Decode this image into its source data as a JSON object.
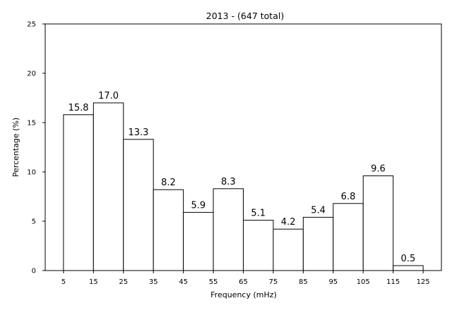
{
  "chart_data": {
    "type": "bar",
    "title": "2013 - (647 total)",
    "xlabel": "Frequency (mHz)",
    "ylabel": "Percentage (%)",
    "bin_edges": [
      5,
      15,
      25,
      35,
      45,
      55,
      65,
      75,
      85,
      95,
      105,
      115,
      125
    ],
    "values": [
      15.8,
      17.0,
      13.3,
      8.2,
      5.9,
      8.3,
      5.1,
      4.2,
      5.4,
      6.8,
      9.6,
      0.5
    ],
    "value_labels": [
      "15.8",
      "17.0",
      "13.3",
      "8.2",
      "5.9",
      "8.3",
      "5.1",
      "4.2",
      "5.4",
      "6.8",
      "9.6",
      "0.5"
    ],
    "xticks": [
      "5",
      "15",
      "25",
      "35",
      "45",
      "55",
      "65",
      "75",
      "85",
      "95",
      "105",
      "115",
      "125"
    ],
    "xtick_values": [
      5,
      15,
      25,
      35,
      45,
      55,
      65,
      75,
      85,
      95,
      105,
      115,
      125
    ],
    "yticks": [
      "0",
      "5",
      "10",
      "15",
      "20",
      "25"
    ],
    "ytick_values": [
      0,
      5,
      10,
      15,
      20,
      25
    ],
    "xlim": [
      -1.1,
      131.1
    ],
    "ylim": [
      0,
      25
    ],
    "grid": false,
    "colors": {
      "bar_fill": "#ffffff",
      "bar_edge": "#000000"
    }
  }
}
